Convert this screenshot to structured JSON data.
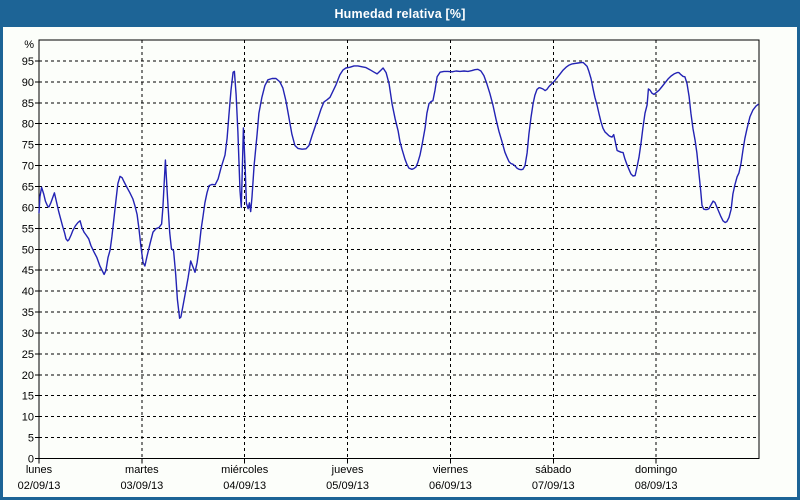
{
  "window": {
    "title": "Humedad relativa [%]"
  },
  "colors": {
    "titlebar_bg": "#1d6496",
    "title_text": "#ffffff",
    "panel_bg": "#fcfefa",
    "border": "#1d6496",
    "line": "#2323b4",
    "grid": "#000000",
    "text": "#000000"
  },
  "chart_data": {
    "type": "line",
    "title": "Humedad relativa [%]",
    "ylabel": "%",
    "ylim": [
      0,
      100
    ],
    "y_ticks": [
      0,
      5,
      10,
      15,
      20,
      25,
      30,
      35,
      40,
      45,
      50,
      55,
      60,
      65,
      70,
      75,
      80,
      85,
      90,
      95
    ],
    "grid": "dashed",
    "legend": "none",
    "x_unit": "hours from Monday 00:00, one week span",
    "days": [
      {
        "name": "lunes",
        "date": "02/09/13"
      },
      {
        "name": "martes",
        "date": "03/09/13"
      },
      {
        "name": "miércoles",
        "date": "04/09/13"
      },
      {
        "name": "jueves",
        "date": "05/09/13"
      },
      {
        "name": "viernes",
        "date": "06/09/13"
      },
      {
        "name": "sábado",
        "date": "07/09/13"
      },
      {
        "name": "domingo",
        "date": "08/09/13"
      }
    ],
    "series": [
      {
        "name": "Humedad relativa",
        "color": "#2323b4",
        "points": [
          [
            0,
            58.7
          ],
          [
            0.2,
            62.5
          ],
          [
            0.6,
            64.8
          ],
          [
            1.1,
            63.2
          ],
          [
            1.5,
            61.5
          ],
          [
            2,
            60.3
          ],
          [
            2.3,
            60.1
          ],
          [
            2.8,
            61.2
          ],
          [
            3.3,
            62.6
          ],
          [
            3.6,
            63.5
          ],
          [
            4.1,
            61.2
          ],
          [
            4.6,
            59
          ],
          [
            5,
            57.5
          ],
          [
            5.5,
            55.5
          ],
          [
            6,
            53.8
          ],
          [
            6.3,
            52.5
          ],
          [
            6.7,
            52
          ],
          [
            7,
            52.3
          ],
          [
            7.5,
            53.4
          ],
          [
            7.9,
            54.5
          ],
          [
            8.5,
            55.6
          ],
          [
            9.1,
            56.4
          ],
          [
            9.6,
            56.8
          ],
          [
            10,
            55.2
          ],
          [
            10.5,
            54.1
          ],
          [
            11,
            53.4
          ],
          [
            11.6,
            52.5
          ],
          [
            12.1,
            50.9
          ],
          [
            12.8,
            49.4
          ],
          [
            13.5,
            48
          ],
          [
            14.2,
            46
          ],
          [
            14.7,
            45
          ],
          [
            15.2,
            44
          ],
          [
            15.6,
            44.9
          ],
          [
            16.1,
            48
          ],
          [
            16.6,
            49.8
          ],
          [
            17,
            53
          ],
          [
            17.5,
            57.5
          ],
          [
            18,
            62
          ],
          [
            18.4,
            65.7
          ],
          [
            18.9,
            67.4
          ],
          [
            19.4,
            67.1
          ],
          [
            19.8,
            66.2
          ],
          [
            20.5,
            64.8
          ],
          [
            21.2,
            63.5
          ],
          [
            21.9,
            62
          ],
          [
            22.4,
            60.3
          ],
          [
            22.9,
            58.3
          ],
          [
            23.3,
            55
          ],
          [
            23.8,
            50.5
          ],
          [
            24.3,
            46.8
          ],
          [
            24.7,
            46
          ],
          [
            25.2,
            48.3
          ],
          [
            25.9,
            51.3
          ],
          [
            26.6,
            54.1
          ],
          [
            27.3,
            54.9
          ],
          [
            28,
            55.2
          ],
          [
            28.6,
            56
          ],
          [
            28.9,
            60
          ],
          [
            29.5,
            71.3
          ],
          [
            30,
            62
          ],
          [
            30.5,
            54
          ],
          [
            30.9,
            50.2
          ],
          [
            31.4,
            49.6
          ],
          [
            31.9,
            44
          ],
          [
            32.3,
            38
          ],
          [
            32.8,
            33.5
          ],
          [
            33.1,
            33.8
          ],
          [
            33.6,
            36.5
          ],
          [
            34.1,
            39.2
          ],
          [
            34.8,
            43.2
          ],
          [
            35.4,
            47.2
          ],
          [
            35.9,
            45.8
          ],
          [
            36.4,
            44.5
          ],
          [
            36.9,
            46.8
          ],
          [
            37.3,
            50
          ],
          [
            37.8,
            54.6
          ],
          [
            38.3,
            58
          ],
          [
            38.7,
            61.1
          ],
          [
            39.2,
            63.5
          ],
          [
            39.7,
            65.2
          ],
          [
            40.4,
            65.5
          ],
          [
            41.1,
            65.4
          ],
          [
            41.8,
            66.8
          ],
          [
            42.5,
            69.5
          ],
          [
            42.9,
            70.9
          ],
          [
            43.4,
            72.5
          ],
          [
            43.9,
            76.5
          ],
          [
            44.3,
            82
          ],
          [
            44.8,
            88
          ],
          [
            45.3,
            92.3
          ],
          [
            45.6,
            92.5
          ],
          [
            46,
            87
          ],
          [
            46.4,
            78
          ],
          [
            46.9,
            64
          ],
          [
            47.2,
            60
          ],
          [
            47.7,
            79
          ],
          [
            48.1,
            70
          ],
          [
            48.4,
            61
          ],
          [
            48.8,
            59.7
          ],
          [
            49.1,
            61.1
          ],
          [
            49.4,
            59
          ],
          [
            49.7,
            62.5
          ],
          [
            50.2,
            70
          ],
          [
            50.9,
            77.5
          ],
          [
            51.3,
            82.5
          ],
          [
            52,
            86.3
          ],
          [
            52.7,
            89.1
          ],
          [
            53.4,
            90.5
          ],
          [
            54.4,
            90.8
          ],
          [
            55.3,
            90.8
          ],
          [
            56.2,
            90
          ],
          [
            56.9,
            88.5
          ],
          [
            57.6,
            85.5
          ],
          [
            58.3,
            81.5
          ],
          [
            59,
            77.5
          ],
          [
            59.7,
            74.8
          ],
          [
            60.4,
            74.1
          ],
          [
            61.4,
            73.9
          ],
          [
            62.3,
            74
          ],
          [
            63,
            74.8
          ],
          [
            63.7,
            77.1
          ],
          [
            64.4,
            79.2
          ],
          [
            65.1,
            81.3
          ],
          [
            65.8,
            83.5
          ],
          [
            66.5,
            85.2
          ],
          [
            67.2,
            85.7
          ],
          [
            67.9,
            86.3
          ],
          [
            68.6,
            87.8
          ],
          [
            69.3,
            89.3
          ],
          [
            70.2,
            91.7
          ],
          [
            70.9,
            92.8
          ],
          [
            71.6,
            93.3
          ],
          [
            72.6,
            93.5
          ],
          [
            73.5,
            93.8
          ],
          [
            74.4,
            93.8
          ],
          [
            75.4,
            93.6
          ],
          [
            76.3,
            93.4
          ],
          [
            77.2,
            92.9
          ],
          [
            78.2,
            92.3
          ],
          [
            78.9,
            91.9
          ],
          [
            79.6,
            92.6
          ],
          [
            80.3,
            93.3
          ],
          [
            81,
            92.2
          ],
          [
            81.7,
            89.5
          ],
          [
            82.4,
            84.7
          ],
          [
            83.1,
            81.2
          ],
          [
            83.8,
            78.3
          ],
          [
            84.2,
            75.8
          ],
          [
            84.7,
            73.9
          ],
          [
            85.4,
            71.5
          ],
          [
            85.9,
            70.2
          ],
          [
            86.3,
            69.4
          ],
          [
            87,
            69.1
          ],
          [
            87.5,
            69.3
          ],
          [
            88,
            69.7
          ],
          [
            88.4,
            70.8
          ],
          [
            88.9,
            72.5
          ],
          [
            89.4,
            75
          ],
          [
            90.1,
            79
          ],
          [
            90.5,
            82.5
          ],
          [
            91,
            84.8
          ],
          [
            91.5,
            85.3
          ],
          [
            91.9,
            85.5
          ],
          [
            92.4,
            88
          ],
          [
            92.9,
            91.2
          ],
          [
            93.6,
            92.3
          ],
          [
            94.5,
            92.5
          ],
          [
            95.4,
            92.5
          ],
          [
            96.4,
            92.4
          ],
          [
            97.3,
            92.6
          ],
          [
            98.2,
            92.5
          ],
          [
            99.2,
            92.6
          ],
          [
            100.1,
            92.5
          ],
          [
            101,
            92.7
          ],
          [
            101.7,
            92.9
          ],
          [
            102.4,
            93
          ],
          [
            103.1,
            92.6
          ],
          [
            103.8,
            91.5
          ],
          [
            104.5,
            89.5
          ],
          [
            105.2,
            87.2
          ],
          [
            105.9,
            84.5
          ],
          [
            106.6,
            81.2
          ],
          [
            107.3,
            78.2
          ],
          [
            108,
            75.8
          ],
          [
            108.7,
            73.2
          ],
          [
            109.2,
            72
          ],
          [
            109.7,
            70.9
          ],
          [
            110.1,
            70.5
          ],
          [
            110.6,
            70.3
          ],
          [
            111.1,
            69.9
          ],
          [
            111.5,
            69.4
          ],
          [
            112,
            69.1
          ],
          [
            112.5,
            69
          ],
          [
            112.9,
            69.1
          ],
          [
            113.4,
            70
          ],
          [
            113.9,
            73
          ],
          [
            114.3,
            77.5
          ],
          [
            114.8,
            81.5
          ],
          [
            115.3,
            84.8
          ],
          [
            115.7,
            86.8
          ],
          [
            116.2,
            88.2
          ],
          [
            116.7,
            88.6
          ],
          [
            117.1,
            88.5
          ],
          [
            117.6,
            88.3
          ],
          [
            118.1,
            87.9
          ],
          [
            118.5,
            88.2
          ],
          [
            119,
            88.9
          ],
          [
            119.5,
            89.4
          ],
          [
            120.2,
            90.1
          ],
          [
            120.9,
            91
          ],
          [
            121.6,
            91.9
          ],
          [
            122.3,
            92.8
          ],
          [
            123,
            93.5
          ],
          [
            123.7,
            94
          ],
          [
            124.4,
            94.3
          ],
          [
            125.1,
            94.4
          ],
          [
            125.8,
            94.5
          ],
          [
            126.5,
            94.6
          ],
          [
            127,
            94.6
          ],
          [
            127.4,
            94.2
          ],
          [
            127.9,
            93.7
          ],
          [
            128.3,
            92.5
          ],
          [
            128.8,
            90.8
          ],
          [
            129.3,
            88.3
          ],
          [
            129.7,
            86.3
          ],
          [
            130.2,
            84.5
          ],
          [
            130.7,
            82.3
          ],
          [
            131.1,
            80.5
          ],
          [
            131.6,
            78.9
          ],
          [
            132.1,
            78
          ],
          [
            132.5,
            77.6
          ],
          [
            132.9,
            77.2
          ],
          [
            133.2,
            77
          ],
          [
            133.7,
            76.8
          ],
          [
            134.1,
            77.4
          ],
          [
            134.4,
            76
          ],
          [
            134.9,
            73.6
          ],
          [
            135.3,
            73.4
          ],
          [
            135.8,
            73.2
          ],
          [
            136.3,
            73.1
          ],
          [
            136.7,
            71.6
          ],
          [
            137.2,
            70.2
          ],
          [
            137.7,
            69
          ],
          [
            138.1,
            68
          ],
          [
            138.6,
            67.5
          ],
          [
            139.1,
            67.6
          ],
          [
            139.5,
            69.5
          ],
          [
            140,
            72
          ],
          [
            140.5,
            75.5
          ],
          [
            140.9,
            79
          ],
          [
            141.4,
            82.5
          ],
          [
            141.9,
            84.5
          ],
          [
            142.2,
            88.3
          ],
          [
            142.6,
            88
          ],
          [
            143,
            87.3
          ],
          [
            143.5,
            87
          ],
          [
            144,
            87.4
          ],
          [
            144.7,
            88
          ],
          [
            145.4,
            88.9
          ],
          [
            146.1,
            89.8
          ],
          [
            146.8,
            90.7
          ],
          [
            147.5,
            91.4
          ],
          [
            148.2,
            91.9
          ],
          [
            148.9,
            92.2
          ],
          [
            149.3,
            92.2
          ],
          [
            149.8,
            91.7
          ],
          [
            150.3,
            91.3
          ],
          [
            150.7,
            91.2
          ],
          [
            151.2,
            89.6
          ],
          [
            151.7,
            86.5
          ],
          [
            152.1,
            82.5
          ],
          [
            152.6,
            78.8
          ],
          [
            153.1,
            76
          ],
          [
            153.5,
            73
          ],
          [
            154,
            68
          ],
          [
            154.4,
            64
          ],
          [
            154.7,
            60.5
          ],
          [
            155.1,
            59.6
          ],
          [
            155.4,
            59.5
          ],
          [
            155.9,
            59.5
          ],
          [
            156.3,
            59.7
          ],
          [
            156.8,
            60.6
          ],
          [
            157.3,
            61.5
          ],
          [
            157.7,
            61.2
          ],
          [
            158.2,
            60
          ],
          [
            158.7,
            58.8
          ],
          [
            159.1,
            57.8
          ],
          [
            159.6,
            56.8
          ],
          [
            160.1,
            56.4
          ],
          [
            160.5,
            56.6
          ],
          [
            161,
            57.6
          ],
          [
            161.5,
            59.5
          ],
          [
            161.9,
            63.2
          ],
          [
            162.4,
            65.5
          ],
          [
            162.9,
            67.3
          ],
          [
            163.3,
            68.2
          ],
          [
            163.8,
            70.5
          ],
          [
            164.3,
            73.9
          ],
          [
            164.7,
            76.5
          ],
          [
            165.2,
            78.8
          ],
          [
            165.9,
            81.7
          ],
          [
            166.6,
            83.3
          ],
          [
            167.3,
            84.2
          ],
          [
            167.8,
            84.6
          ]
        ]
      }
    ]
  }
}
